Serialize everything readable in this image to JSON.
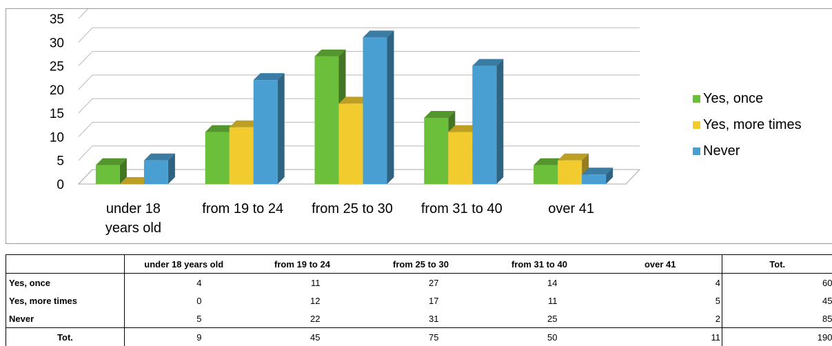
{
  "chart_data": {
    "type": "bar",
    "categories": [
      "under 18 years old",
      "from 19 to 24",
      "from 25 to 30",
      "from 31 to 40",
      "over 41"
    ],
    "category_lines": [
      [
        "under 18",
        "years old"
      ],
      [
        "from 19 to 24"
      ],
      [
        "from 25 to 30"
      ],
      [
        "from 31 to 40"
      ],
      [
        "over 41"
      ]
    ],
    "series": [
      {
        "name": "Yes, once",
        "values": [
          4,
          11,
          27,
          14,
          4
        ],
        "color": "#6cbf3a"
      },
      {
        "name": "Yes, more times",
        "values": [
          0,
          12,
          17,
          11,
          5
        ],
        "color": "#f2cc2e"
      },
      {
        "name": "Never",
        "values": [
          5,
          22,
          31,
          25,
          2
        ],
        "color": "#4a9fd2"
      }
    ],
    "yticks": [
      0,
      5,
      10,
      15,
      20,
      25,
      30,
      35
    ],
    "ylim": [
      0,
      35
    ],
    "grid": true,
    "legend_position": "right",
    "title": "",
    "xlabel": "",
    "ylabel": ""
  },
  "table": {
    "corner": "",
    "headers": [
      "under 18 years old",
      "from 19 to 24",
      "from 25 to 30",
      "from 31 to 40",
      "over 41",
      "Tot."
    ],
    "rows": [
      {
        "label": "Yes, once",
        "values": [
          "4",
          "11",
          "27",
          "14",
          "4"
        ],
        "total": "60"
      },
      {
        "label": "Yes, more times",
        "values": [
          "0",
          "12",
          "17",
          "11",
          "5"
        ],
        "total": "45"
      },
      {
        "label": "Never",
        "values": [
          "5",
          "22",
          "31",
          "25",
          "2"
        ],
        "total": "85"
      }
    ],
    "total_row": {
      "label": "Tot.",
      "values": [
        "9",
        "45",
        "75",
        "50",
        "11"
      ],
      "total": "190"
    }
  }
}
